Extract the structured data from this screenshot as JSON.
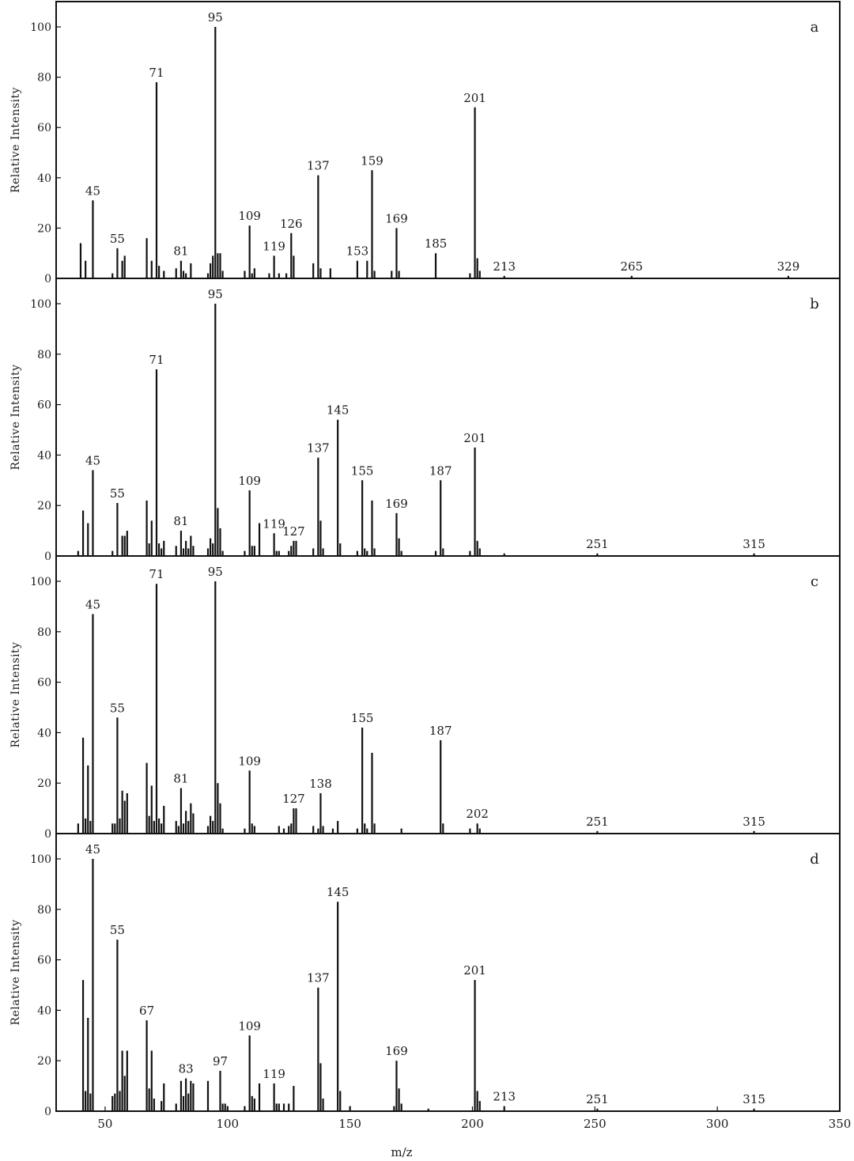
{
  "figure": {
    "ylabel": "Relative Intensity",
    "xlabel": "m/z",
    "x_ticks": [
      50,
      100,
      150,
      200,
      250,
      300,
      350
    ],
    "y_ticks": [
      0,
      20,
      40,
      60,
      80,
      100
    ]
  },
  "chart_data": [
    {
      "type": "bar",
      "panel": "a",
      "xlim": [
        30,
        350
      ],
      "ylim": [
        0,
        105
      ],
      "xlabel": "",
      "ylabel": "Relative Intensity",
      "x": [
        40,
        42,
        45,
        53,
        55,
        57,
        58,
        67,
        69,
        71,
        72,
        74,
        79,
        81,
        82,
        83,
        85,
        92,
        93,
        94,
        95,
        96,
        97,
        98,
        107,
        109,
        110,
        111,
        117,
        119,
        121,
        124,
        126,
        127,
        135,
        137,
        138,
        142,
        153,
        157,
        159,
        160,
        167,
        169,
        170,
        185,
        199,
        201,
        202,
        203,
        213,
        265,
        329
      ],
      "values": [
        14,
        7,
        31,
        2,
        12,
        7,
        9,
        16,
        7,
        78,
        5,
        3,
        4,
        7,
        3,
        2,
        6,
        2,
        6,
        9,
        100,
        10,
        10,
        3,
        3,
        21,
        2,
        4,
        2,
        9,
        2,
        2,
        18,
        9,
        6,
        41,
        4,
        4,
        7,
        7,
        43,
        3,
        3,
        20,
        3,
        10,
        2,
        68,
        8,
        3,
        1,
        1,
        1
      ],
      "peak_labels": [
        "45",
        "55",
        "71",
        "81",
        "95",
        "109",
        "119",
        "126",
        "137",
        "153",
        "159",
        "169",
        "185",
        "201",
        "213",
        "265",
        "329"
      ],
      "peak_label_values": [
        31,
        12,
        78,
        7,
        100,
        21,
        9,
        18,
        41,
        7,
        43,
        20,
        10,
        68,
        1,
        1,
        1
      ]
    },
    {
      "type": "bar",
      "panel": "b",
      "xlim": [
        30,
        350
      ],
      "ylim": [
        0,
        105
      ],
      "xlabel": "",
      "ylabel": "Relative Intensity",
      "x": [
        39,
        41,
        43,
        45,
        53,
        55,
        57,
        58,
        59,
        67,
        68,
        69,
        71,
        72,
        73,
        74,
        79,
        81,
        82,
        83,
        84,
        85,
        86,
        92,
        93,
        94,
        95,
        96,
        97,
        98,
        107,
        109,
        110,
        111,
        113,
        119,
        120,
        121,
        125,
        126,
        127,
        128,
        135,
        137,
        138,
        139,
        145,
        146,
        153,
        155,
        156,
        157,
        159,
        160,
        169,
        170,
        171,
        185,
        187,
        188,
        199,
        201,
        202,
        203,
        213,
        251,
        315
      ],
      "values": [
        2,
        18,
        13,
        34,
        2,
        21,
        8,
        8,
        10,
        22,
        5,
        14,
        74,
        5,
        3,
        6,
        4,
        10,
        3,
        6,
        3,
        8,
        4,
        3,
        7,
        5,
        100,
        19,
        11,
        2,
        2,
        26,
        4,
        4,
        13,
        9,
        2,
        2,
        2,
        4,
        6,
        6,
        3,
        39,
        14,
        3,
        54,
        5,
        2,
        30,
        3,
        2,
        22,
        3,
        17,
        7,
        2,
        2,
        30,
        3,
        2,
        43,
        6,
        3,
        1,
        1,
        1
      ],
      "peak_labels": [
        "45",
        "55",
        "71",
        "81",
        "95",
        "109",
        "119",
        "127",
        "137",
        "145",
        "155",
        "169",
        "187",
        "201",
        "251",
        "315"
      ],
      "peak_label_values": [
        34,
        21,
        74,
        10,
        100,
        26,
        9,
        6,
        39,
        54,
        30,
        17,
        30,
        43,
        1,
        1
      ]
    },
    {
      "type": "bar",
      "panel": "c",
      "xlim": [
        30,
        350
      ],
      "ylim": [
        0,
        105
      ],
      "xlabel": "",
      "ylabel": "Relative Intensity",
      "x": [
        39,
        41,
        42,
        43,
        44,
        45,
        53,
        54,
        55,
        56,
        57,
        58,
        59,
        67,
        68,
        69,
        70,
        71,
        72,
        73,
        74,
        79,
        80,
        81,
        82,
        83,
        84,
        85,
        86,
        92,
        93,
        94,
        95,
        96,
        97,
        98,
        107,
        109,
        110,
        111,
        121,
        123,
        125,
        126,
        127,
        128,
        135,
        137,
        138,
        139,
        143,
        145,
        153,
        155,
        156,
        157,
        159,
        160,
        171,
        187,
        188,
        199,
        202,
        203,
        251,
        315
      ],
      "values": [
        4,
        38,
        6,
        27,
        5,
        87,
        4,
        4,
        46,
        6,
        17,
        13,
        16,
        28,
        7,
        19,
        5,
        99,
        6,
        4,
        11,
        5,
        3,
        18,
        4,
        9,
        5,
        12,
        8,
        3,
        7,
        5,
        100,
        20,
        12,
        2,
        2,
        25,
        4,
        3,
        3,
        2,
        3,
        4,
        10,
        10,
        3,
        2,
        16,
        3,
        2,
        5,
        2,
        42,
        4,
        2,
        32,
        4,
        2,
        37,
        4,
        2,
        4,
        2,
        1,
        1
      ],
      "peak_labels": [
        "45",
        "55",
        "71",
        "81",
        "95",
        "109",
        "127",
        "138",
        "155",
        "187",
        "202",
        "251",
        "315"
      ],
      "peak_label_values": [
        87,
        46,
        99,
        18,
        100,
        25,
        10,
        16,
        42,
        37,
        4,
        1,
        1
      ]
    },
    {
      "type": "bar",
      "panel": "d",
      "xlim": [
        30,
        350
      ],
      "ylim": [
        0,
        105
      ],
      "xlabel": "m/z",
      "ylabel": "Relative Intensity",
      "x": [
        41,
        42,
        43,
        44,
        45,
        53,
        54,
        55,
        56,
        57,
        58,
        59,
        67,
        68,
        69,
        70,
        73,
        74,
        79,
        81,
        82,
        83,
        84,
        85,
        86,
        92,
        97,
        98,
        99,
        100,
        107,
        109,
        110,
        111,
        113,
        119,
        120,
        121,
        123,
        125,
        127,
        137,
        138,
        139,
        145,
        146,
        150,
        168,
        169,
        170,
        171,
        182,
        201,
        202,
        203,
        213,
        251,
        315
      ],
      "values": [
        52,
        8,
        37,
        7,
        100,
        6,
        7,
        68,
        8,
        24,
        14,
        24,
        36,
        9,
        24,
        5,
        4,
        11,
        3,
        12,
        6,
        13,
        7,
        12,
        11,
        12,
        16,
        3,
        3,
        2,
        2,
        30,
        6,
        5,
        11,
        11,
        3,
        3,
        3,
        3,
        10,
        49,
        19,
        5,
        83,
        8,
        2,
        2,
        20,
        9,
        3,
        1,
        52,
        8,
        4,
        2,
        1,
        1
      ],
      "peak_labels": [
        "45",
        "55",
        "67",
        "83",
        "97",
        "109",
        "119",
        "137",
        "145",
        "169",
        "201",
        "213",
        "251",
        "315"
      ],
      "peak_label_values": [
        100,
        68,
        36,
        13,
        16,
        30,
        11,
        49,
        83,
        20,
        52,
        2,
        1,
        1
      ]
    }
  ]
}
